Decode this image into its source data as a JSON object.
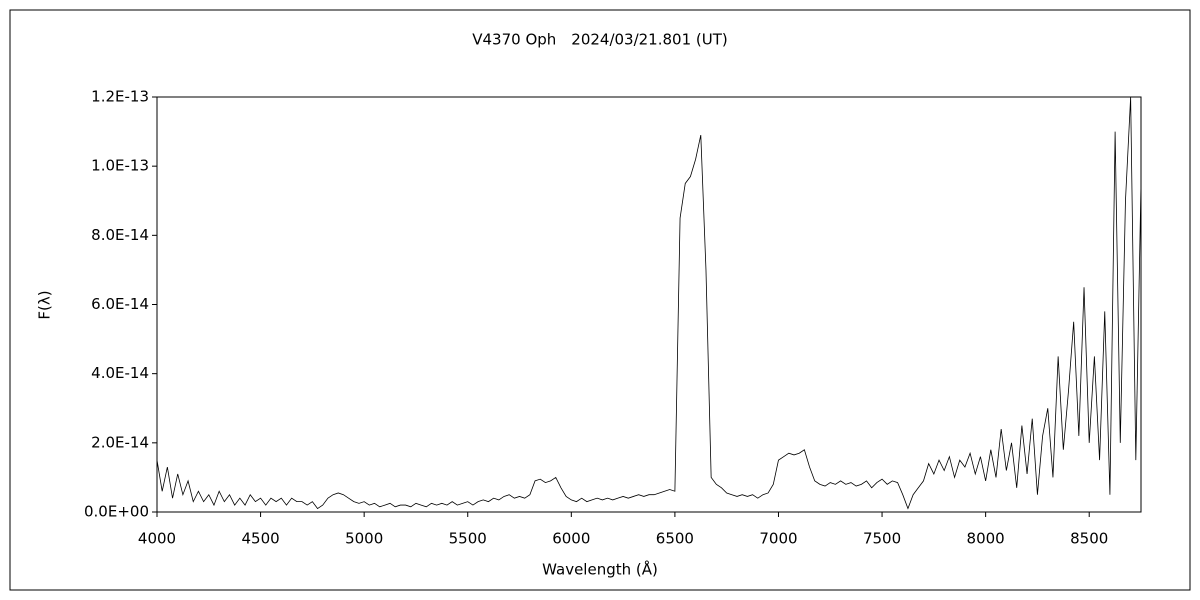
{
  "chart_data": {
    "type": "line",
    "title": "V4370 Oph　2024/03/21.801 (UT)",
    "x_label": "Wavelength (Å)",
    "y_label": "F(λ)",
    "color": "#000000",
    "xlim": [
      4000,
      8750
    ],
    "ylim": [
      0,
      1.2e-13
    ],
    "xticks": [
      4000,
      4500,
      5000,
      5500,
      6000,
      6500,
      7000,
      7500,
      8000,
      8500
    ],
    "yticks": [
      {
        "value": 0,
        "label": "0.0E+00"
      },
      {
        "value": 2e-14,
        "label": "2.0E-14"
      },
      {
        "value": 4e-14,
        "label": "4.0E-14"
      },
      {
        "value": 6e-14,
        "label": "6.0E-14"
      },
      {
        "value": 8e-14,
        "label": "8.0E-14"
      },
      {
        "value": 1e-13,
        "label": "1.0E-13"
      },
      {
        "value": 1.2e-13,
        "label": "1.2E-13"
      }
    ],
    "x": [
      4000,
      4025,
      4050,
      4075,
      4100,
      4125,
      4150,
      4175,
      4200,
      4225,
      4250,
      4275,
      4300,
      4325,
      4350,
      4375,
      4400,
      4425,
      4450,
      4475,
      4500,
      4525,
      4550,
      4575,
      4600,
      4625,
      4650,
      4675,
      4700,
      4725,
      4750,
      4775,
      4800,
      4825,
      4850,
      4875,
      4900,
      4925,
      4950,
      4975,
      5000,
      5025,
      5050,
      5075,
      5100,
      5125,
      5150,
      5175,
      5200,
      5225,
      5250,
      5275,
      5300,
      5325,
      5350,
      5375,
      5400,
      5425,
      5450,
      5475,
      5500,
      5525,
      5550,
      5575,
      5600,
      5625,
      5650,
      5675,
      5700,
      5725,
      5750,
      5775,
      5800,
      5825,
      5850,
      5875,
      5900,
      5925,
      5950,
      5975,
      6000,
      6025,
      6050,
      6075,
      6100,
      6125,
      6150,
      6175,
      6200,
      6225,
      6250,
      6275,
      6300,
      6325,
      6350,
      6375,
      6400,
      6425,
      6450,
      6475,
      6500,
      6525,
      6550,
      6575,
      6600,
      6625,
      6650,
      6675,
      6700,
      6725,
      6750,
      6775,
      6800,
      6825,
      6850,
      6875,
      6900,
      6925,
      6950,
      6975,
      7000,
      7025,
      7050,
      7075,
      7100,
      7125,
      7150,
      7175,
      7200,
      7225,
      7250,
      7275,
      7300,
      7325,
      7350,
      7375,
      7400,
      7425,
      7450,
      7475,
      7500,
      7525,
      7550,
      7575,
      7600,
      7625,
      7650,
      7675,
      7700,
      7725,
      7750,
      7775,
      7800,
      7825,
      7850,
      7875,
      7900,
      7925,
      7950,
      7975,
      8000,
      8025,
      8050,
      8075,
      8100,
      8125,
      8150,
      8175,
      8200,
      8225,
      8250,
      8275,
      8300,
      8325,
      8350,
      8375,
      8400,
      8425,
      8450,
      8475,
      8500,
      8525,
      8550,
      8575,
      8600,
      8625,
      8650,
      8675,
      8700,
      8725,
      8750
    ],
    "values": [
      1.5e-14,
      6e-15,
      1.3e-14,
      4e-15,
      1.1e-14,
      5e-15,
      9e-15,
      3e-15,
      6e-15,
      3e-15,
      5e-15,
      2e-15,
      6e-15,
      3e-15,
      5e-15,
      2e-15,
      4e-15,
      2e-15,
      5e-15,
      3e-15,
      4e-15,
      2e-15,
      4e-15,
      3e-15,
      4e-15,
      2e-15,
      4e-15,
      3e-15,
      3e-15,
      2e-15,
      3e-15,
      1e-15,
      2e-15,
      4e-15,
      5e-15,
      5.5e-15,
      5e-15,
      4e-15,
      3e-15,
      2.5e-15,
      3e-15,
      2e-15,
      2.5e-15,
      1.5e-15,
      2e-15,
      2.5e-15,
      1.5e-15,
      2e-15,
      2e-15,
      1.5e-15,
      2.5e-15,
      2e-15,
      1.5e-15,
      2.5e-15,
      2e-15,
      2.5e-15,
      2e-15,
      3e-15,
      2e-15,
      2.5e-15,
      3e-15,
      2e-15,
      3e-15,
      3.5e-15,
      3e-15,
      4e-15,
      3.5e-15,
      4.5e-15,
      5e-15,
      4e-15,
      4.5e-15,
      4e-15,
      5e-15,
      9e-15,
      9.5e-15,
      8.5e-15,
      9e-15,
      1e-14,
      7e-15,
      4.5e-15,
      3.5e-15,
      3e-15,
      4e-15,
      3e-15,
      3.5e-15,
      4e-15,
      3.5e-15,
      4e-15,
      3.5e-15,
      4e-15,
      4.5e-15,
      4e-15,
      4.5e-15,
      5e-15,
      4.5e-15,
      5e-15,
      5e-15,
      5.5e-15,
      6e-15,
      6.5e-15,
      6e-15,
      8.5e-14,
      9.5e-14,
      9.7e-14,
      1.02e-13,
      1.09e-13,
      7e-14,
      1e-14,
      8e-15,
      7e-15,
      5.5e-15,
      5e-15,
      4.5e-15,
      5e-15,
      4.5e-15,
      5e-15,
      4e-15,
      5e-15,
      5.5e-15,
      8e-15,
      1.5e-14,
      1.6e-14,
      1.7e-14,
      1.65e-14,
      1.7e-14,
      1.8e-14,
      1.3e-14,
      9e-15,
      8e-15,
      7.5e-15,
      8.5e-15,
      8e-15,
      9e-15,
      8e-15,
      8.5e-15,
      7.5e-15,
      8e-15,
      9e-15,
      7e-15,
      8.5e-15,
      9.5e-15,
      8e-15,
      9e-15,
      8.5e-15,
      5e-15,
      1e-15,
      5e-15,
      7e-15,
      9e-15,
      1.4e-14,
      1.1e-14,
      1.5e-14,
      1.2e-14,
      1.6e-14,
      1e-14,
      1.5e-14,
      1.3e-14,
      1.7e-14,
      1.1e-14,
      1.6e-14,
      9e-15,
      1.8e-14,
      1e-14,
      2.4e-14,
      1.2e-14,
      2e-14,
      7e-15,
      2.5e-14,
      1.1e-14,
      2.7e-14,
      5e-15,
      2.2e-14,
      3e-14,
      1e-14,
      4.5e-14,
      1.8e-14,
      3.5e-14,
      5.5e-14,
      2.2e-14,
      6.5e-14,
      2e-14,
      4.5e-14,
      1.5e-14,
      5.8e-14,
      5e-15,
      1.1e-13,
      2e-14,
      9e-14,
      1.2e-13,
      1.5e-14,
      9.5e-14
    ]
  }
}
